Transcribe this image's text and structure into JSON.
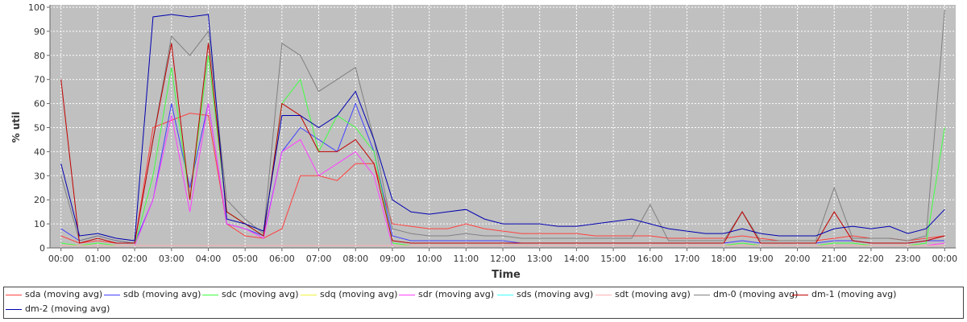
{
  "chart_data": {
    "type": "line",
    "title": "",
    "xlabel": "Time",
    "ylabel": "% util",
    "ylim": [
      0,
      100
    ],
    "xlim_hours": [
      -0.3,
      24.3
    ],
    "x_tick_labels": [
      "00:00",
      "01:00",
      "02:00",
      "03:00",
      "04:00",
      "05:00",
      "06:00",
      "07:00",
      "08:00",
      "09:00",
      "10:00",
      "11:00",
      "12:00",
      "13:00",
      "14:00",
      "15:00",
      "16:00",
      "17:00",
      "18:00",
      "19:00",
      "20:00",
      "21:00",
      "22:00",
      "23:00",
      "00:00"
    ],
    "y_ticks": [
      0,
      10,
      20,
      30,
      40,
      50,
      60,
      70,
      80,
      90,
      100
    ],
    "grid": true,
    "legend_placement": "bottom",
    "x": [
      "00:00",
      "00:30",
      "01:00",
      "01:30",
      "02:00",
      "02:30",
      "03:00",
      "03:30",
      "04:00",
      "04:30",
      "05:00",
      "05:30",
      "06:00",
      "06:30",
      "07:00",
      "07:30",
      "08:00",
      "08:30",
      "09:00",
      "09:30",
      "10:00",
      "10:30",
      "11:00",
      "11:30",
      "12:00",
      "12:30",
      "13:00",
      "13:30",
      "14:00",
      "14:30",
      "15:00",
      "15:30",
      "16:00",
      "16:30",
      "17:00",
      "17:30",
      "18:00",
      "18:30",
      "19:00",
      "19:30",
      "20:00",
      "20:30",
      "21:00",
      "21:30",
      "22:00",
      "22:30",
      "23:00",
      "23:30",
      "00:00"
    ],
    "series": [
      {
        "name": "sda (moving avg)",
        "color": "#ff4040",
        "values": [
          5,
          2,
          3,
          2,
          2,
          50,
          53,
          56,
          55,
          10,
          5,
          4,
          8,
          30,
          30,
          28,
          35,
          35,
          10,
          9,
          8,
          8,
          10,
          8,
          7,
          6,
          6,
          6,
          6,
          5,
          5,
          5,
          5,
          4,
          4,
          4,
          4,
          5,
          4,
          3,
          3,
          3,
          4,
          5,
          4,
          4,
          3,
          4,
          5
        ]
      },
      {
        "name": "sdb (moving avg)",
        "color": "#4040ff",
        "values": [
          8,
          3,
          5,
          3,
          2,
          20,
          60,
          25,
          60,
          10,
          8,
          5,
          40,
          50,
          45,
          40,
          60,
          40,
          5,
          3,
          3,
          3,
          3,
          3,
          3,
          2,
          2,
          2,
          2,
          2,
          2,
          2,
          2,
          2,
          2,
          2,
          2,
          3,
          2,
          2,
          2,
          2,
          3,
          3,
          2,
          2,
          2,
          3,
          3
        ]
      },
      {
        "name": "sdc (moving avg)",
        "color": "#40ff40",
        "values": [
          2,
          1,
          2,
          1,
          1,
          30,
          75,
          20,
          80,
          15,
          10,
          5,
          60,
          70,
          40,
          55,
          50,
          40,
          2,
          1,
          1,
          1,
          1,
          1,
          1,
          1,
          1,
          1,
          1,
          1,
          1,
          1,
          1,
          1,
          1,
          1,
          1,
          2,
          1,
          1,
          1,
          1,
          2,
          2,
          1,
          1,
          1,
          2,
          50
        ]
      },
      {
        "name": "sdq (moving avg)",
        "color": "#f0f040",
        "values": [
          0,
          0,
          0,
          0,
          0,
          0,
          0,
          0,
          0,
          0,
          0,
          0,
          0,
          0,
          0,
          0,
          0,
          0,
          0,
          0,
          0,
          0,
          0,
          0,
          0,
          0,
          0,
          0,
          0,
          0,
          0,
          0,
          0,
          0,
          0,
          0,
          0,
          0,
          0,
          0,
          0,
          0,
          0,
          0,
          0,
          0,
          0,
          0,
          0
        ]
      },
      {
        "name": "sdr (moving avg)",
        "color": "#ff40ff",
        "values": [
          1,
          1,
          1,
          1,
          1,
          20,
          55,
          15,
          60,
          10,
          8,
          4,
          40,
          45,
          30,
          35,
          40,
          30,
          1,
          1,
          1,
          1,
          1,
          1,
          1,
          1,
          1,
          1,
          1,
          1,
          1,
          1,
          1,
          1,
          1,
          1,
          1,
          1,
          1,
          1,
          1,
          1,
          1,
          1,
          1,
          1,
          1,
          1,
          2
        ]
      },
      {
        "name": "sds (moving avg)",
        "color": "#40ffff",
        "values": [
          0,
          0,
          0,
          0,
          0,
          0,
          0,
          0,
          0,
          0,
          0,
          0,
          0,
          0,
          0,
          0,
          0,
          0,
          0,
          0,
          0,
          0,
          0,
          0,
          0,
          0,
          0,
          0,
          0,
          0,
          0,
          0,
          0,
          0,
          0,
          0,
          0,
          0,
          0,
          0,
          0,
          0,
          0,
          0,
          0,
          0,
          0,
          0,
          0
        ]
      },
      {
        "name": "sdt (moving avg)",
        "color": "#ffb0b0",
        "values": [
          1,
          1,
          1,
          1,
          1,
          1,
          1,
          1,
          1,
          1,
          1,
          1,
          1,
          1,
          1,
          1,
          1,
          1,
          1,
          1,
          1,
          1,
          1,
          1,
          1,
          1,
          1,
          1,
          1,
          1,
          1,
          1,
          1,
          1,
          1,
          1,
          1,
          1,
          1,
          1,
          1,
          1,
          1,
          1,
          1,
          1,
          1,
          1,
          1
        ]
      },
      {
        "name": "dm-0 (moving avg)",
        "color": "#808080",
        "values": [
          30,
          3,
          5,
          3,
          2,
          45,
          88,
          80,
          90,
          20,
          12,
          6,
          85,
          80,
          65,
          70,
          75,
          45,
          8,
          6,
          5,
          5,
          6,
          5,
          5,
          4,
          4,
          4,
          4,
          4,
          4,
          4,
          18,
          3,
          3,
          3,
          3,
          15,
          3,
          3,
          3,
          3,
          25,
          4,
          4,
          4,
          3,
          5,
          99
        ]
      },
      {
        "name": "dm-1 (moving avg)",
        "color": "#c00000",
        "values": [
          70,
          2,
          4,
          2,
          2,
          45,
          85,
          20,
          85,
          15,
          10,
          5,
          60,
          55,
          40,
          40,
          45,
          35,
          3,
          2,
          2,
          2,
          2,
          2,
          2,
          2,
          2,
          2,
          2,
          2,
          2,
          2,
          2,
          2,
          2,
          2,
          2,
          15,
          2,
          2,
          2,
          2,
          15,
          3,
          2,
          2,
          2,
          3,
          5
        ]
      },
      {
        "name": "dm-2 (moving avg)",
        "color": "#0000b0",
        "values": [
          35,
          5,
          6,
          4,
          3,
          96,
          97,
          96,
          97,
          12,
          10,
          7,
          55,
          55,
          50,
          55,
          65,
          45,
          20,
          15,
          14,
          15,
          16,
          12,
          10,
          10,
          10,
          9,
          9,
          10,
          11,
          12,
          10,
          8,
          7,
          6,
          6,
          8,
          6,
          5,
          5,
          5,
          8,
          9,
          8,
          9,
          6,
          8,
          16
        ]
      }
    ]
  }
}
